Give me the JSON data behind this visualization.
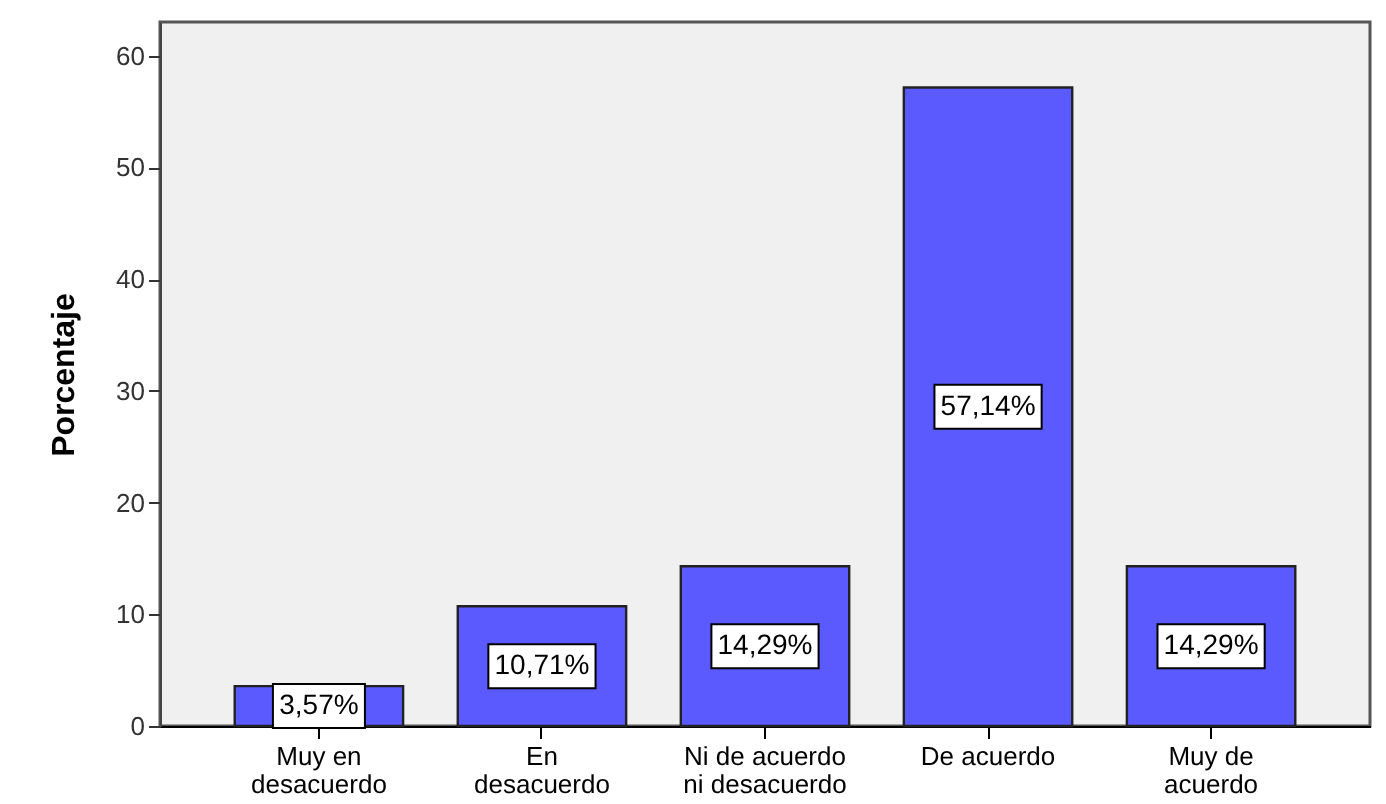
{
  "chart_data": {
    "type": "bar",
    "ylabel": "Porcentaje",
    "categories": [
      "Muy en\ndesacuerdo",
      "En\ndesacuerdo",
      "Ni de acuerdo\nni desacuerdo",
      "De acuerdo",
      "Muy de\nacuerdo"
    ],
    "values": [
      3.57,
      10.71,
      14.29,
      57.14,
      14.29
    ],
    "value_labels": [
      "3,57%",
      "10,71%",
      "14,29%",
      "57,14%",
      "14,29%"
    ],
    "color": "#5a5aff",
    "ylim": [
      0,
      63
    ],
    "yticks": [
      0,
      10,
      20,
      30,
      40,
      50,
      60
    ]
  }
}
